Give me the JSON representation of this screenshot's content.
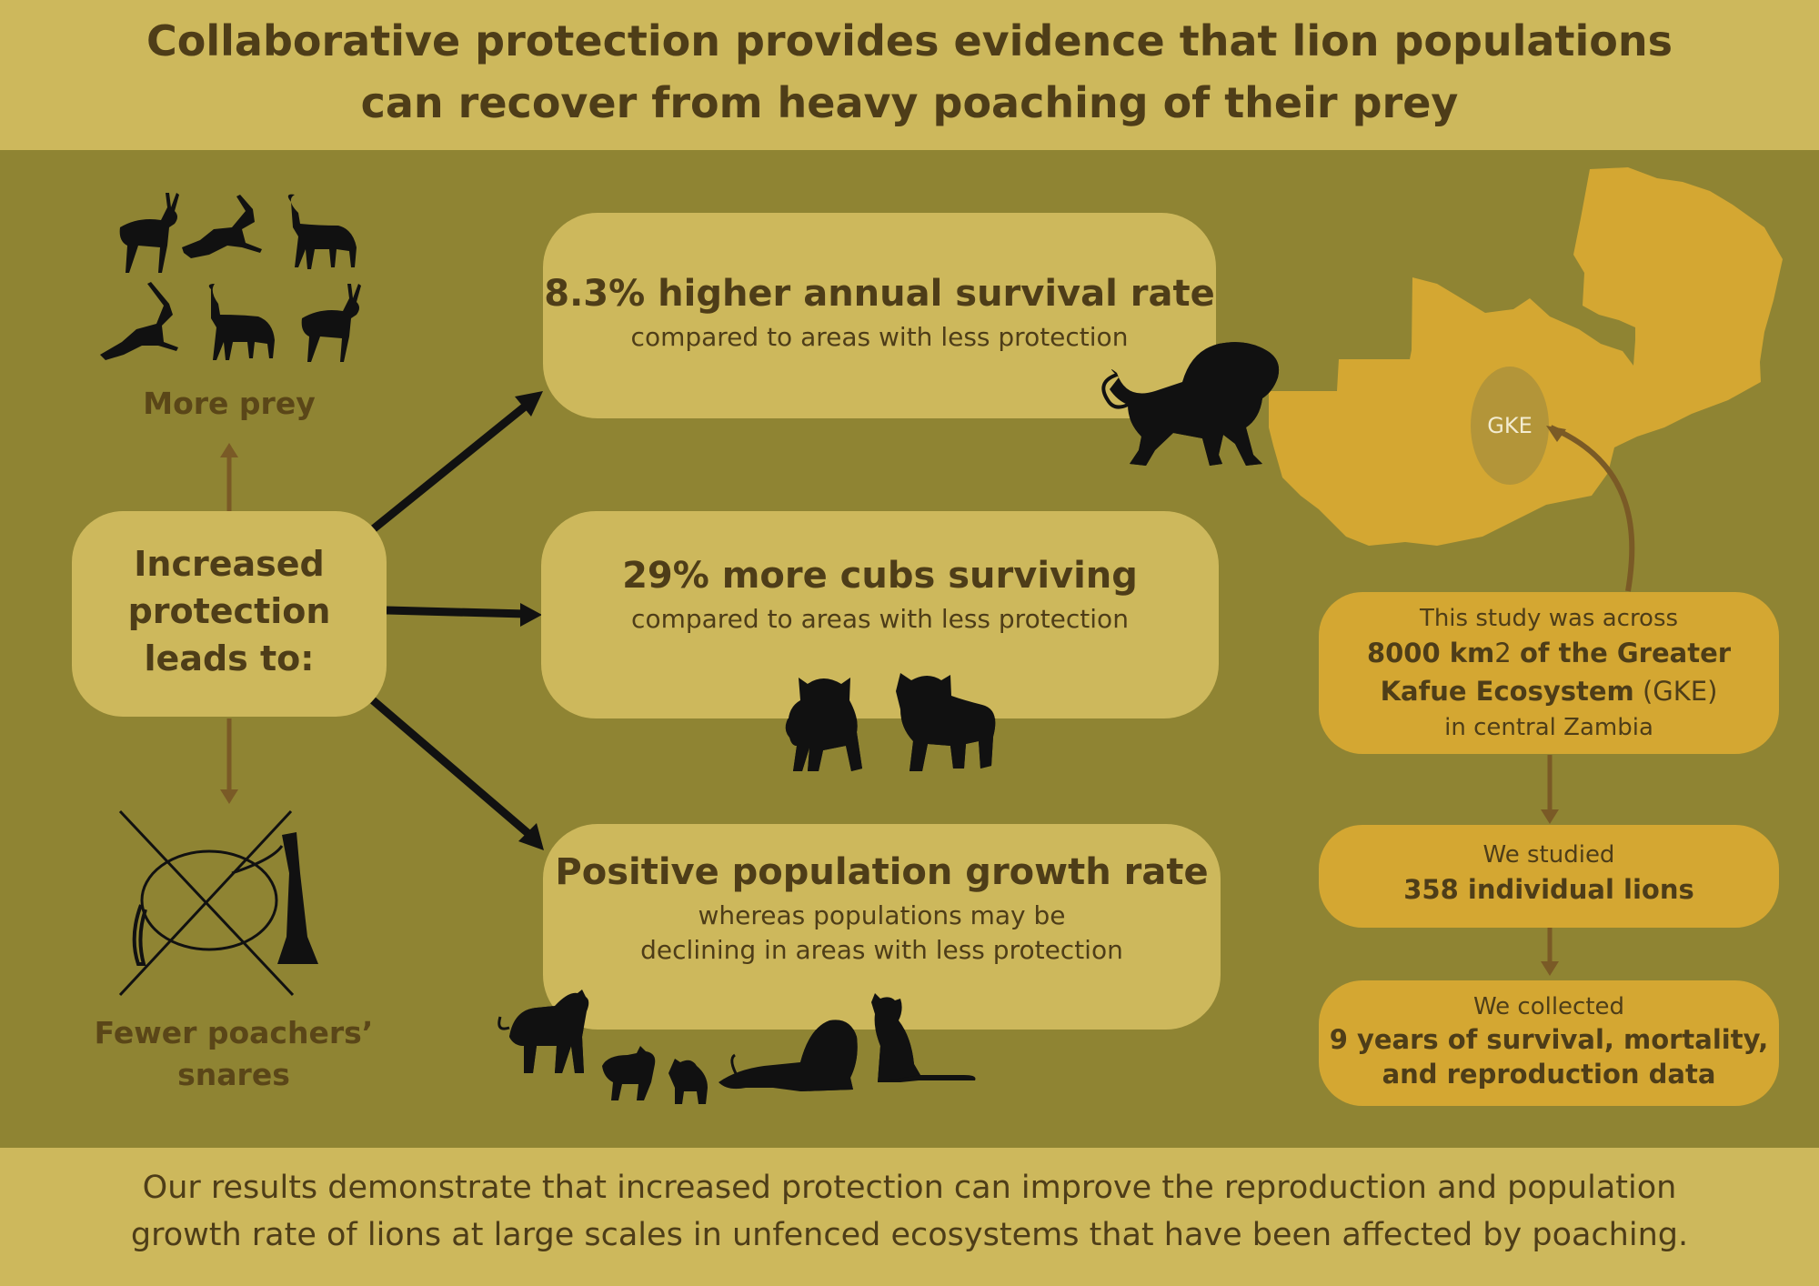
{
  "header": {
    "title_line1": "Collaborative protection provides evidence that lion populations",
    "title_line2": "can recover from heavy poaching of their prey"
  },
  "hub": {
    "line1": "Increased",
    "line2": "protection",
    "line3": "leads to:"
  },
  "side": {
    "prey_label": "More prey",
    "snares_line1": "Fewer poachers’",
    "snares_line2": "snares"
  },
  "outcomes": {
    "survival": {
      "title": "8.3% higher annual survival rate",
      "subtitle": "compared to areas with less protection"
    },
    "cubs": {
      "title": "29% more cubs surviving",
      "subtitle": "compared to areas with less protection"
    },
    "growth": {
      "title": "Positive population growth rate",
      "subtitle_line1": "whereas populations may be",
      "subtitle_line2": "declining in areas with less protection"
    }
  },
  "map": {
    "region_label": "GKE"
  },
  "study": {
    "area": {
      "line1": "This study was across",
      "line2_bold": "8000 km",
      "line2_rest": "2 ",
      "line2_bold_end": "of the Greater",
      "line3_bold": "Kafue Ecosystem",
      "line3_rest": " (GKE)",
      "line4": "in central Zambia"
    },
    "lions": {
      "line1": "We studied",
      "line2": "358 individual lions"
    },
    "data": {
      "line1": "We collected",
      "line2": "9 years of survival, mortality,",
      "line3": "and reproduction data"
    }
  },
  "footer": {
    "line1": "Our results demonstrate that increased protection can improve the reproduction and population",
    "line2": "growth rate of lions at large scales in unfenced ecosystems that have been affected by poaching."
  },
  "colors": {
    "background": "#8f8433",
    "band": "#cdb85c",
    "card": "#cdb85c",
    "gold": "#d4a732",
    "text": "#4e3d18",
    "arrow_brown": "#7a5a26",
    "silhouette": "#111111"
  }
}
